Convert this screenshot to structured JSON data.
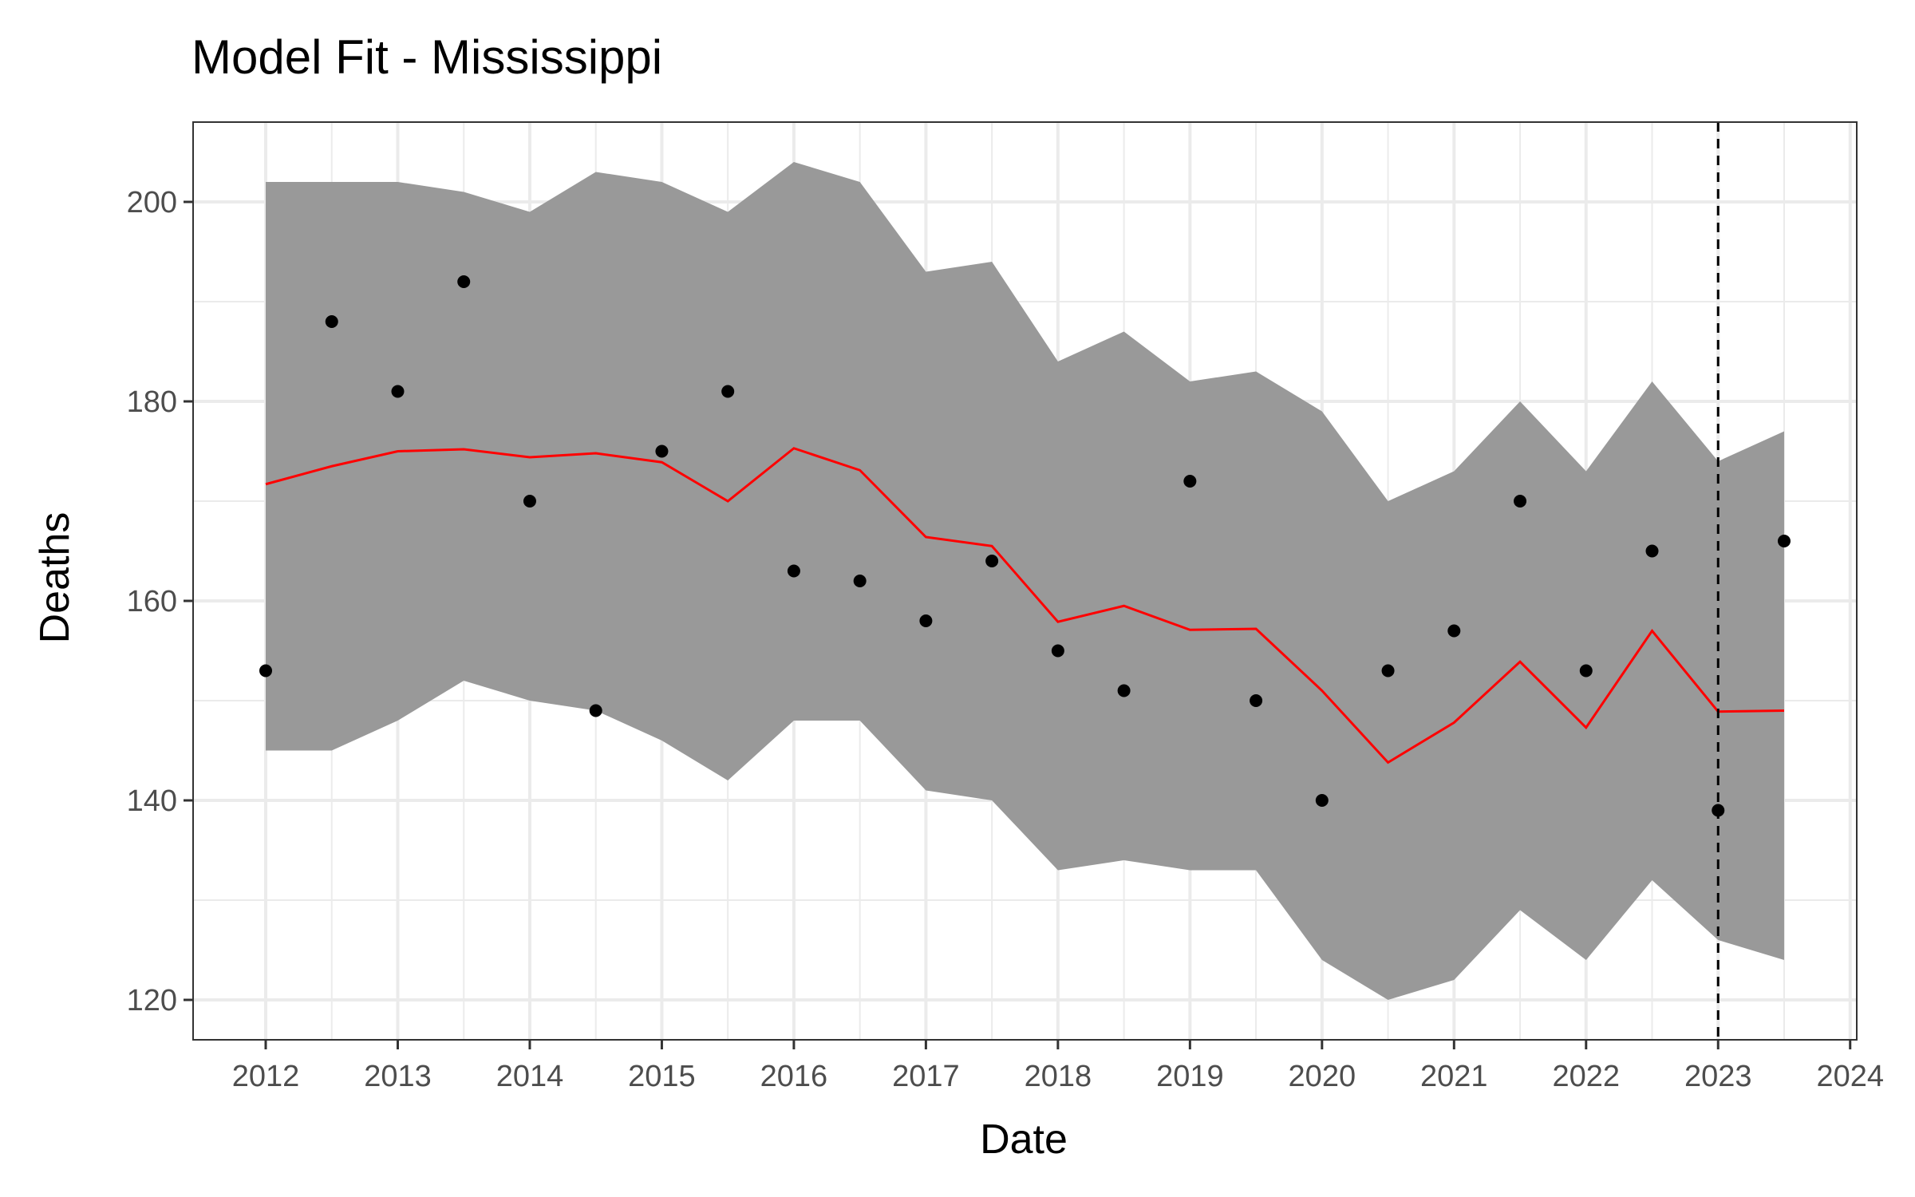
{
  "chart_data": {
    "type": "line",
    "title": "Model Fit - Mississippi",
    "xlabel": "Date",
    "ylabel": "Deaths",
    "xlim": [
      2011.45,
      2024.05
    ],
    "ylim": [
      116,
      208
    ],
    "x_ticks": [
      2012,
      2013,
      2014,
      2015,
      2016,
      2017,
      2018,
      2019,
      2020,
      2021,
      2022,
      2023,
      2024
    ],
    "x_tick_labels": [
      "2012",
      "2013",
      "2014",
      "2015",
      "2016",
      "2017",
      "2018",
      "2019",
      "2020",
      "2021",
      "2022",
      "2023",
      "2024"
    ],
    "y_ticks": [
      120,
      140,
      160,
      180,
      200
    ],
    "y_tick_labels": [
      "120",
      "140",
      "160",
      "180",
      "200"
    ],
    "grid": true,
    "vline_x": 2023,
    "x": [
      2012,
      2012.5,
      2013,
      2013.5,
      2014,
      2014.5,
      2015,
      2015.5,
      2016,
      2016.5,
      2017,
      2017.5,
      2018,
      2018.5,
      2019,
      2019.5,
      2020,
      2020.5,
      2021,
      2021.5,
      2022,
      2022.5,
      2023,
      2023.5
    ],
    "band_upper": [
      202,
      202,
      202,
      201,
      199,
      203,
      202,
      199,
      204,
      202,
      193,
      194,
      184,
      187,
      182,
      183,
      179,
      170,
      173,
      180,
      173,
      182,
      174,
      177
    ],
    "band_lower": [
      145,
      145,
      148,
      152,
      150,
      149,
      146,
      142,
      148,
      148,
      141,
      140,
      133,
      134,
      133,
      133,
      124,
      120,
      122,
      129,
      124,
      132,
      126,
      124
    ],
    "fit": [
      171.7,
      173.5,
      175.0,
      175.2,
      174.4,
      174.8,
      173.9,
      170.0,
      175.3,
      173.1,
      166.4,
      165.5,
      157.9,
      159.5,
      157.1,
      157.2,
      151.0,
      143.8,
      147.8,
      153.9,
      147.3,
      157.0,
      148.9,
      149.0
    ],
    "observed": [
      153,
      188,
      181,
      192,
      170,
      149,
      175,
      181,
      163,
      162,
      158,
      164,
      155,
      151,
      172,
      150,
      140,
      153,
      157,
      170,
      153,
      165,
      139,
      166
    ],
    "colors": {
      "band": "#999999",
      "fit": "#ff0000",
      "points": "#000000",
      "vline": "#000000",
      "grid": "#ebebeb",
      "panel_border": "#333333",
      "tick_text": "#4d4d4d"
    }
  }
}
